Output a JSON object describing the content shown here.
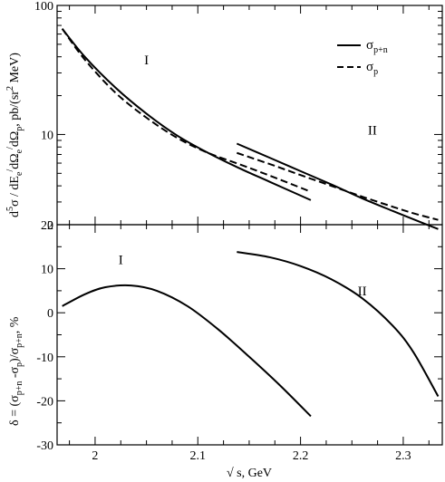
{
  "chart_data": [
    {
      "type": "line",
      "panel": "top",
      "ylabel": "d⁵σ / dEₑ′dΩₑ′dΩₚ, pb/(sr² MeV)",
      "xlim": [
        1.963,
        2.338
      ],
      "ylim": [
        2,
        100
      ],
      "yscale": "log",
      "yticks": [
        {
          "v": 100,
          "label": "100"
        },
        {
          "v": 10,
          "label": "10"
        },
        {
          "v": 2,
          "label": "2"
        }
      ],
      "legend": {
        "position": "top-right",
        "entries": [
          {
            "label": "σp+n",
            "style": "solid"
          },
          {
            "label": "σp",
            "style": "dashed"
          }
        ]
      },
      "annotations": [
        {
          "text": "I",
          "x": 2.05,
          "y": 35
        },
        {
          "text": "II",
          "x": 2.27,
          "y": 10
        }
      ],
      "series": [
        {
          "name": "σp+n (I)",
          "style": "solid",
          "x": [
            1.968,
            1.99,
            2.02,
            2.05,
            2.08,
            2.11,
            2.14,
            2.17,
            2.21
          ],
          "y": [
            66,
            40,
            23,
            14.5,
            9.8,
            7.2,
            5.5,
            4.3,
            3.1
          ]
        },
        {
          "name": "σp (I)",
          "style": "dashed",
          "x": [
            1.968,
            1.99,
            2.02,
            2.05,
            2.08,
            2.11,
            2.14,
            2.17,
            2.21
          ],
          "y": [
            66,
            38,
            21,
            13.5,
            9.4,
            7.2,
            5.9,
            4.8,
            3.6
          ]
        },
        {
          "name": "σp+n (II)",
          "style": "solid",
          "x": [
            2.138,
            2.17,
            2.2,
            2.23,
            2.26,
            2.29,
            2.31,
            2.334
          ],
          "y": [
            8.5,
            6.6,
            5.2,
            4.1,
            3.2,
            2.55,
            2.2,
            1.85
          ]
        },
        {
          "name": "σp (II)",
          "style": "dashed",
          "x": [
            2.138,
            2.17,
            2.2,
            2.23,
            2.26,
            2.29,
            2.31,
            2.334
          ],
          "y": [
            7.2,
            5.9,
            4.85,
            4.0,
            3.3,
            2.75,
            2.45,
            2.18
          ]
        }
      ]
    },
    {
      "type": "line",
      "panel": "bottom",
      "xlabel": "√ s, GeV",
      "ylabel": "δ = (σp+n − σp)/σp+n, %",
      "xlim": [
        1.963,
        2.338
      ],
      "ylim": [
        -30,
        20
      ],
      "xticks": [
        {
          "v": 2.0,
          "label": "2"
        },
        {
          "v": 2.1,
          "label": "2.1"
        },
        {
          "v": 2.2,
          "label": "2.2"
        },
        {
          "v": 2.3,
          "label": "2.3"
        }
      ],
      "yticks": [
        {
          "v": 20,
          "label": "20"
        },
        {
          "v": 10,
          "label": "10"
        },
        {
          "v": 0,
          "label": "0"
        },
        {
          "v": -10,
          "label": "-10"
        },
        {
          "v": -20,
          "label": "-20"
        },
        {
          "v": -30,
          "label": "-30"
        }
      ],
      "annotations": [
        {
          "text": "I",
          "x": 2.025,
          "y": 11
        },
        {
          "text": "II",
          "x": 2.26,
          "y": 4
        }
      ],
      "series": [
        {
          "name": "δ (I)",
          "style": "solid",
          "x": [
            1.968,
            1.99,
            2.01,
            2.035,
            2.06,
            2.09,
            2.12,
            2.15,
            2.18,
            2.21
          ],
          "y": [
            1.5,
            4.2,
            5.8,
            6.2,
            5.0,
            1.5,
            -3.8,
            -10.0,
            -16.5,
            -23.5
          ]
        },
        {
          "name": "δ (II)",
          "style": "solid",
          "x": [
            2.138,
            2.17,
            2.2,
            2.23,
            2.26,
            2.29,
            2.31,
            2.334
          ],
          "y": [
            13.8,
            12.6,
            10.6,
            7.6,
            3.3,
            -3.0,
            -9.0,
            -19.0
          ]
        }
      ]
    }
  ]
}
